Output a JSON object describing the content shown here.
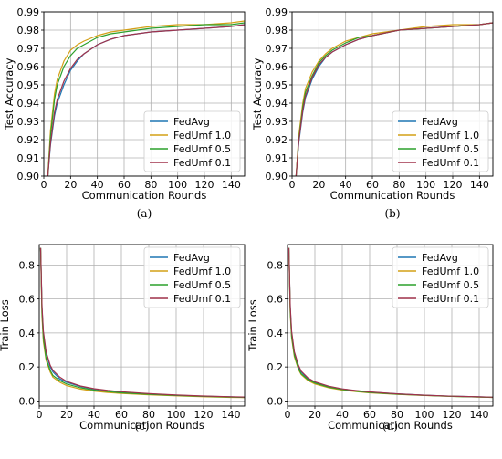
{
  "chart_data": [
    {
      "id": "a",
      "caption": "(a)",
      "type": "line",
      "xlabel": "Communication Rounds",
      "ylabel": "Test Accuracy",
      "xlim": [
        0,
        150
      ],
      "ylim": [
        0.9,
        0.99
      ],
      "xticks": [
        0,
        20,
        40,
        60,
        80,
        100,
        120,
        140
      ],
      "yticks": [
        0.9,
        0.91,
        0.92,
        0.93,
        0.94,
        0.95,
        0.96,
        0.97,
        0.98,
        0.99
      ],
      "ytick_labels": [
        "0.90",
        "0.91",
        "0.92",
        "0.93",
        "0.94",
        "0.95",
        "0.96",
        "0.97",
        "0.98",
        "0.99"
      ],
      "grid": true,
      "legend_position": "lower-right",
      "series": [
        {
          "name": "FedAvg",
          "color": "#1f77b4",
          "x": [
            3,
            5,
            8,
            10,
            15,
            20,
            25,
            30,
            40,
            50,
            60,
            80,
            100,
            120,
            140,
            150
          ],
          "y": [
            0.9,
            0.917,
            0.933,
            0.94,
            0.95,
            0.958,
            0.963,
            0.967,
            0.972,
            0.975,
            0.977,
            0.979,
            0.98,
            0.981,
            0.982,
            0.983
          ]
        },
        {
          "name": "FedUmf 1.0",
          "color": "#d4a017",
          "x": [
            3,
            5,
            8,
            10,
            15,
            20,
            25,
            30,
            40,
            50,
            60,
            80,
            100,
            120,
            140,
            150
          ],
          "y": [
            0.9,
            0.925,
            0.945,
            0.953,
            0.963,
            0.969,
            0.972,
            0.974,
            0.977,
            0.979,
            0.98,
            0.982,
            0.983,
            0.983,
            0.984,
            0.985
          ]
        },
        {
          "name": "FedUmf 0.5",
          "color": "#2ca02c",
          "x": [
            3,
            5,
            8,
            10,
            15,
            20,
            25,
            30,
            40,
            50,
            60,
            80,
            100,
            120,
            140,
            150
          ],
          "y": [
            0.9,
            0.922,
            0.942,
            0.95,
            0.96,
            0.966,
            0.97,
            0.972,
            0.976,
            0.978,
            0.979,
            0.981,
            0.982,
            0.983,
            0.983,
            0.984
          ]
        },
        {
          "name": "FedUmf 0.1",
          "color": "#a0324b",
          "x": [
            3,
            5,
            8,
            10,
            15,
            20,
            25,
            30,
            40,
            50,
            60,
            80,
            100,
            120,
            140,
            150
          ],
          "y": [
            0.9,
            0.918,
            0.935,
            0.942,
            0.952,
            0.959,
            0.964,
            0.967,
            0.972,
            0.975,
            0.977,
            0.979,
            0.98,
            0.981,
            0.982,
            0.983
          ]
        }
      ]
    },
    {
      "id": "b",
      "caption": "(b)",
      "type": "line",
      "xlabel": "Communication Rounds",
      "ylabel": "Test Accuracy",
      "xlim": [
        0,
        150
      ],
      "ylim": [
        0.9,
        0.99
      ],
      "xticks": [
        0,
        20,
        40,
        60,
        80,
        100,
        120,
        140
      ],
      "yticks": [
        0.9,
        0.91,
        0.92,
        0.93,
        0.94,
        0.95,
        0.96,
        0.97,
        0.98,
        0.99
      ],
      "ytick_labels": [
        "0.90",
        "0.91",
        "0.92",
        "0.93",
        "0.94",
        "0.95",
        "0.96",
        "0.97",
        "0.98",
        "0.99"
      ],
      "grid": true,
      "legend_position": "lower-right",
      "series": [
        {
          "name": "FedAvg",
          "color": "#1f77b4",
          "x": [
            3,
            5,
            8,
            10,
            15,
            20,
            25,
            30,
            40,
            50,
            60,
            80,
            100,
            120,
            140,
            150
          ],
          "y": [
            0.9,
            0.918,
            0.935,
            0.943,
            0.953,
            0.96,
            0.965,
            0.968,
            0.972,
            0.975,
            0.977,
            0.98,
            0.981,
            0.982,
            0.983,
            0.984
          ]
        },
        {
          "name": "FedUmf 1.0",
          "color": "#d4a017",
          "x": [
            3,
            5,
            8,
            10,
            15,
            20,
            25,
            30,
            40,
            50,
            60,
            80,
            100,
            120,
            140,
            150
          ],
          "y": [
            0.9,
            0.922,
            0.94,
            0.948,
            0.957,
            0.963,
            0.967,
            0.97,
            0.974,
            0.976,
            0.978,
            0.98,
            0.982,
            0.983,
            0.983,
            0.984
          ]
        },
        {
          "name": "FedUmf 0.5",
          "color": "#2ca02c",
          "x": [
            3,
            5,
            8,
            10,
            15,
            20,
            25,
            30,
            40,
            50,
            60,
            80,
            100,
            120,
            140,
            150
          ],
          "y": [
            0.9,
            0.92,
            0.938,
            0.946,
            0.955,
            0.962,
            0.966,
            0.969,
            0.973,
            0.976,
            0.977,
            0.98,
            0.981,
            0.982,
            0.983,
            0.984
          ]
        },
        {
          "name": "FedUmf 0.1",
          "color": "#a0324b",
          "x": [
            3,
            5,
            8,
            10,
            15,
            20,
            25,
            30,
            40,
            50,
            60,
            80,
            100,
            120,
            140,
            150
          ],
          "y": [
            0.9,
            0.919,
            0.936,
            0.944,
            0.954,
            0.961,
            0.965,
            0.968,
            0.972,
            0.975,
            0.977,
            0.98,
            0.981,
            0.982,
            0.983,
            0.984
          ]
        }
      ]
    },
    {
      "id": "c",
      "caption": "(c)",
      "type": "line",
      "xlabel": "Communication Rounds",
      "ylabel": "Train Loss",
      "xlim": [
        0,
        150
      ],
      "ylim": [
        -0.03,
        0.92
      ],
      "xticks": [
        0,
        20,
        40,
        60,
        80,
        100,
        120,
        140
      ],
      "yticks": [
        0.0,
        0.2,
        0.4,
        0.6,
        0.8
      ],
      "ytick_labels": [
        "0.0",
        "0.2",
        "0.4",
        "0.6",
        "0.8"
      ],
      "grid": true,
      "legend_position": "upper-right",
      "series": [
        {
          "name": "FedAvg",
          "color": "#1f77b4",
          "x": [
            1,
            2,
            3,
            5,
            8,
            10,
            15,
            20,
            30,
            40,
            50,
            60,
            80,
            100,
            120,
            140,
            150
          ],
          "y": [
            0.9,
            0.55,
            0.4,
            0.28,
            0.2,
            0.17,
            0.13,
            0.11,
            0.085,
            0.07,
            0.06,
            0.052,
            0.042,
            0.034,
            0.028,
            0.024,
            0.022
          ]
        },
        {
          "name": "FedUmf 1.0",
          "color": "#d4a017",
          "x": [
            1,
            2,
            3,
            5,
            8,
            10,
            15,
            20,
            30,
            40,
            50,
            60,
            80,
            100,
            120,
            140,
            150
          ],
          "y": [
            0.9,
            0.5,
            0.35,
            0.24,
            0.17,
            0.14,
            0.11,
            0.09,
            0.07,
            0.058,
            0.05,
            0.044,
            0.036,
            0.03,
            0.025,
            0.021,
            0.02
          ]
        },
        {
          "name": "FedUmf 0.5",
          "color": "#2ca02c",
          "x": [
            1,
            2,
            3,
            5,
            8,
            10,
            15,
            20,
            30,
            40,
            50,
            60,
            80,
            100,
            120,
            140,
            150
          ],
          "y": [
            0.9,
            0.52,
            0.37,
            0.25,
            0.18,
            0.15,
            0.12,
            0.1,
            0.078,
            0.064,
            0.055,
            0.048,
            0.039,
            0.032,
            0.027,
            0.023,
            0.021
          ]
        },
        {
          "name": "FedUmf 0.1",
          "color": "#a0324b",
          "x": [
            1,
            2,
            3,
            5,
            8,
            10,
            15,
            20,
            30,
            40,
            50,
            60,
            80,
            100,
            120,
            140,
            150
          ],
          "y": [
            0.9,
            0.56,
            0.41,
            0.29,
            0.21,
            0.18,
            0.14,
            0.115,
            0.088,
            0.072,
            0.062,
            0.054,
            0.043,
            0.035,
            0.029,
            0.025,
            0.023
          ]
        }
      ]
    },
    {
      "id": "d",
      "caption": "(d)",
      "type": "line",
      "xlabel": "Communication Rounds",
      "ylabel": "Train Loss",
      "xlim": [
        0,
        150
      ],
      "ylim": [
        -0.03,
        0.92
      ],
      "xticks": [
        0,
        20,
        40,
        60,
        80,
        100,
        120,
        140
      ],
      "yticks": [
        0.0,
        0.2,
        0.4,
        0.6,
        0.8
      ],
      "ytick_labels": [
        "0.0",
        "0.2",
        "0.4",
        "0.6",
        "0.8"
      ],
      "grid": true,
      "legend_position": "upper-right",
      "series": [
        {
          "name": "FedAvg",
          "color": "#1f77b4",
          "x": [
            1,
            2,
            3,
            5,
            8,
            10,
            15,
            20,
            30,
            40,
            50,
            60,
            80,
            100,
            120,
            140,
            150
          ],
          "y": [
            0.9,
            0.55,
            0.4,
            0.28,
            0.2,
            0.17,
            0.13,
            0.11,
            0.085,
            0.07,
            0.06,
            0.052,
            0.042,
            0.034,
            0.028,
            0.024,
            0.022
          ]
        },
        {
          "name": "FedUmf 1.0",
          "color": "#d4a017",
          "x": [
            1,
            2,
            3,
            5,
            8,
            10,
            15,
            20,
            30,
            40,
            50,
            60,
            80,
            100,
            120,
            140,
            150
          ],
          "y": [
            0.9,
            0.52,
            0.37,
            0.26,
            0.185,
            0.155,
            0.12,
            0.1,
            0.078,
            0.064,
            0.055,
            0.048,
            0.039,
            0.032,
            0.027,
            0.023,
            0.021
          ]
        },
        {
          "name": "FedUmf 0.5",
          "color": "#2ca02c",
          "x": [
            1,
            2,
            3,
            5,
            8,
            10,
            15,
            20,
            30,
            40,
            50,
            60,
            80,
            100,
            120,
            140,
            150
          ],
          "y": [
            0.9,
            0.53,
            0.38,
            0.27,
            0.19,
            0.16,
            0.125,
            0.105,
            0.081,
            0.067,
            0.057,
            0.05,
            0.04,
            0.033,
            0.027,
            0.023,
            0.021
          ]
        },
        {
          "name": "FedUmf 0.1",
          "color": "#a0324b",
          "x": [
            1,
            2,
            3,
            5,
            8,
            10,
            15,
            20,
            30,
            40,
            50,
            60,
            80,
            100,
            120,
            140,
            150
          ],
          "y": [
            0.9,
            0.56,
            0.41,
            0.29,
            0.21,
            0.175,
            0.135,
            0.112,
            0.087,
            0.071,
            0.061,
            0.053,
            0.042,
            0.034,
            0.028,
            0.024,
            0.022
          ]
        }
      ]
    }
  ]
}
